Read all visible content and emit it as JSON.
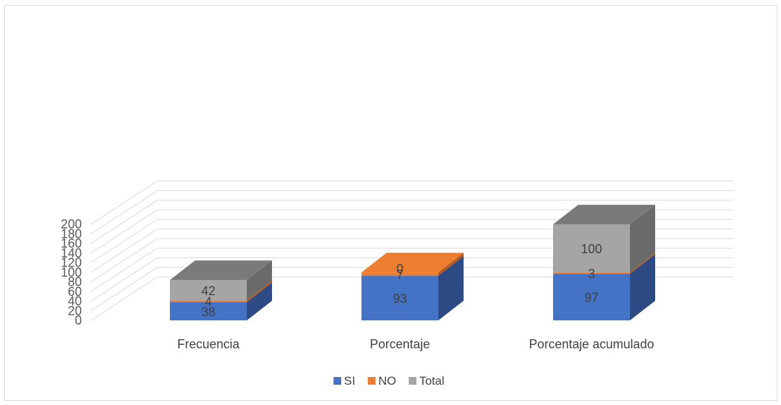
{
  "chart_data": {
    "type": "bar",
    "stacked": true,
    "three_d": true,
    "title": "",
    "xlabel": "",
    "ylabel": "",
    "categories": [
      "Frecuencia",
      "Porcentaje",
      "Porcentaje acumulado"
    ],
    "series": [
      {
        "name": "SI",
        "values": [
          38,
          93,
          97
        ],
        "labels": [
          "38",
          "93",
          "97"
        ],
        "color": "#4472c4",
        "side_color": "#2e4a84",
        "top_color": "#4472c4"
      },
      {
        "name": "NO",
        "values": [
          4,
          7,
          3
        ],
        "labels": [
          "4",
          "7",
          "3"
        ],
        "color": "#ed7d31",
        "side_color": "#b25a22",
        "top_color": "#ed7d31"
      },
      {
        "name": "Total",
        "values": [
          42,
          0,
          100
        ],
        "labels": [
          "42",
          "0",
          "100"
        ],
        "color": "#a5a5a5",
        "side_color": "#6a6a6a",
        "top_color": "#7a7a7a"
      }
    ],
    "y_ticks": [
      "0",
      "20",
      "40",
      "60",
      "80",
      "100",
      "120",
      "140",
      "160",
      "180",
      "200"
    ],
    "ylim": [
      0,
      200
    ],
    "grid": true,
    "legend_position": "bottom"
  }
}
